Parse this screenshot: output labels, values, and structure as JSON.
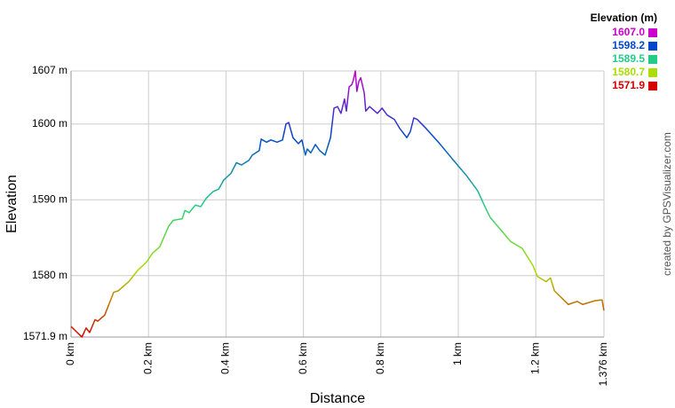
{
  "chart_data": {
    "type": "line",
    "x_label": "Distance",
    "y_label": "Elevation",
    "credit": "created by GPSVisualizer.com",
    "legend_title": "Elevation (m)",
    "color_scale": [
      {
        "value": 1607,
        "label": "1607.0",
        "color": "#cc00cc"
      },
      {
        "value": 1598.2,
        "label": "1598.2",
        "color": "#0047cc"
      },
      {
        "value": 1589.5,
        "label": "1589.5",
        "color": "#22cc88"
      },
      {
        "value": 1580.7,
        "label": "1580.7",
        "color": "#aadd00"
      },
      {
        "value": 1571.9,
        "label": "1571.9",
        "color": "#d40000"
      }
    ],
    "xlim": [
      0,
      1.376
    ],
    "ylim": [
      1571.9,
      1607
    ],
    "xticks": [
      {
        "value": 0,
        "label": "0 km"
      },
      {
        "value": 0.2,
        "label": "0.2 km"
      },
      {
        "value": 0.4,
        "label": "0.4 km"
      },
      {
        "value": 0.6,
        "label": "0.6 km"
      },
      {
        "value": 0.8,
        "label": "0.8 km"
      },
      {
        "value": 1,
        "label": "1 km"
      },
      {
        "value": 1.2,
        "label": "1.2 km"
      },
      {
        "value": 1.376,
        "label": "1.376 km"
      }
    ],
    "yticks": [
      {
        "value": 1571.9,
        "label": "1571.9 m"
      },
      {
        "value": 1580,
        "label": "1580 m"
      },
      {
        "value": 1590,
        "label": "1590 m"
      },
      {
        "value": 1600,
        "label": "1600 m"
      },
      {
        "value": 1607,
        "label": "1607 m"
      }
    ],
    "grid": true,
    "x": [
      0,
      0.028,
      0.039,
      0.048,
      0.062,
      0.069,
      0.087,
      0.11,
      0.122,
      0.149,
      0.172,
      0.195,
      0.211,
      0.229,
      0.252,
      0.264,
      0.287,
      0.294,
      0.305,
      0.321,
      0.335,
      0.349,
      0.367,
      0.381,
      0.394,
      0.413,
      0.427,
      0.44,
      0.459,
      0.468,
      0.486,
      0.491,
      0.505,
      0.516,
      0.532,
      0.546,
      0.555,
      0.562,
      0.573,
      0.587,
      0.596,
      0.605,
      0.61,
      0.619,
      0.631,
      0.642,
      0.656,
      0.67,
      0.679,
      0.688,
      0.697,
      0.706,
      0.711,
      0.718,
      0.725,
      0.729,
      0.734,
      0.738,
      0.743,
      0.748,
      0.757,
      0.761,
      0.771,
      0.791,
      0.803,
      0.816,
      0.835,
      0.849,
      0.867,
      0.876,
      0.885,
      0.894,
      0.917,
      0.952,
      0.986,
      1.021,
      1.05,
      1.066,
      1.082,
      1.112,
      1.135,
      1.165,
      1.193,
      1.204,
      1.227,
      1.238,
      1.248,
      1.284,
      1.307,
      1.321,
      1.353,
      1.371,
      1.376
    ],
    "values": [
      1573.3,
      1571.9,
      1573.1,
      1572.5,
      1574.2,
      1574.0,
      1574.8,
      1577.8,
      1578.0,
      1579.2,
      1580.7,
      1581.8,
      1583.0,
      1583.8,
      1586.5,
      1587.3,
      1587.5,
      1588.6,
      1588.3,
      1589.3,
      1589.1,
      1590.2,
      1591.1,
      1591.4,
      1592.6,
      1593.5,
      1594.9,
      1594.6,
      1595.2,
      1595.9,
      1596.5,
      1598.0,
      1597.6,
      1597.9,
      1597.6,
      1597.9,
      1600.0,
      1600.2,
      1598.2,
      1597.4,
      1597.9,
      1595.9,
      1596.7,
      1596.2,
      1597.3,
      1596.5,
      1595.9,
      1598.2,
      1602.1,
      1602.3,
      1601.4,
      1603.3,
      1601.7,
      1604.9,
      1605.2,
      1605.8,
      1607.0,
      1604.3,
      1605.6,
      1606.1,
      1604.1,
      1601.7,
      1602.3,
      1601.4,
      1602.1,
      1601.2,
      1600.6,
      1599.4,
      1598.2,
      1599.0,
      1600.8,
      1600.6,
      1599.4,
      1597.4,
      1595.3,
      1593.2,
      1591.2,
      1589.4,
      1587.7,
      1585.9,
      1584.5,
      1583.6,
      1581.3,
      1579.9,
      1579.2,
      1579.7,
      1578.0,
      1576.2,
      1576.6,
      1576.2,
      1576.7,
      1576.8,
      1575.4
    ]
  }
}
